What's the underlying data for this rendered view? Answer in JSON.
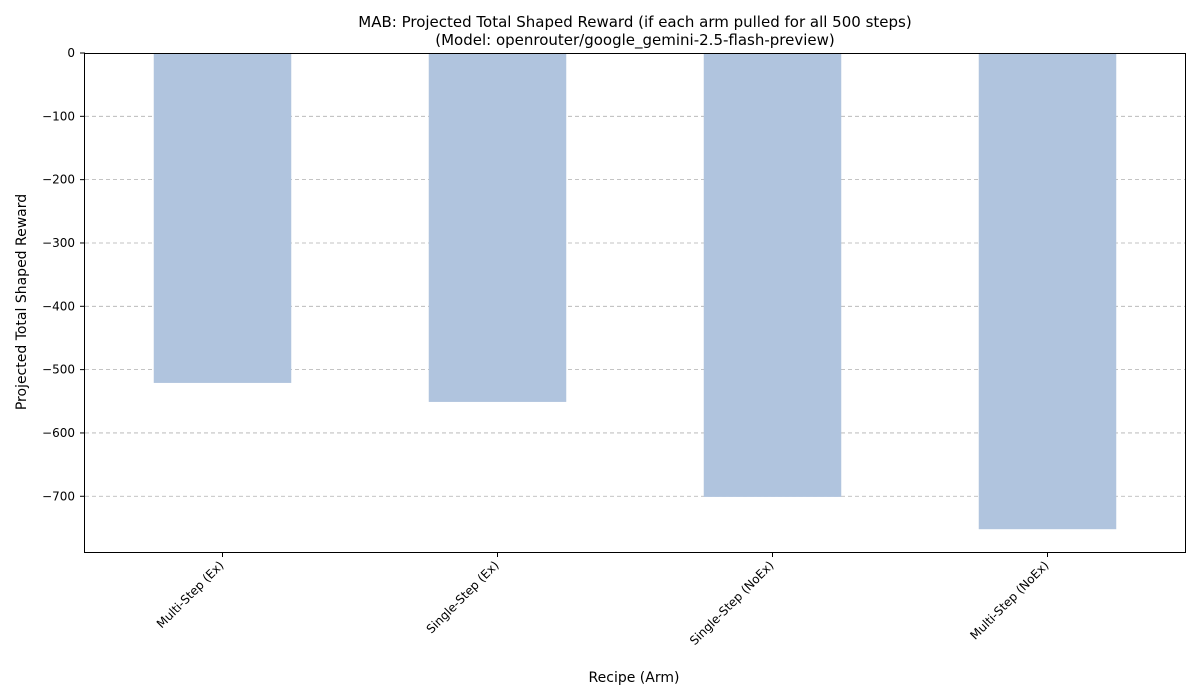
{
  "chart_data": {
    "type": "bar",
    "title": "MAB: Projected Total Shaped Reward (if each arm pulled for all 500 steps)",
    "subtitle": "(Model: openrouter/google_gemini-2.5-flash-preview)",
    "xlabel": "Recipe (Arm)",
    "ylabel": "Projected Total Shaped Reward",
    "categories": [
      "Multi-Step (Ex)",
      "Single-Step (Ex)",
      "Single-Step (NoEx)",
      "Multi-Step (NoEx)"
    ],
    "values": [
      -521,
      -551,
      -701,
      -752
    ],
    "ylim": [
      -788,
      0
    ],
    "yticks": [
      0,
      -100,
      -200,
      -300,
      -400,
      -500,
      -600,
      -700
    ],
    "ytick_labels": [
      "0",
      "−100",
      "−200",
      "−300",
      "−400",
      "−500",
      "−600",
      "−700"
    ],
    "grid": "horizontal-dashed",
    "bar_color": "#b0c4de"
  }
}
